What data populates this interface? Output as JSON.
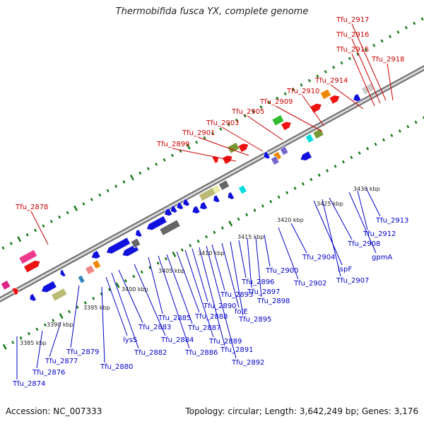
{
  "title": "Thermobifida fusca YX, complete genome",
  "footer": {
    "accession": "Accession: NC_007333",
    "topology": "Topology: circular; Length: 3,642,249 bp; Genes: 3,176"
  },
  "colors": {
    "forward_label": "#cc0000",
    "reverse_label": "#0000cc",
    "backbone": "#9a9a9a",
    "tick": "#117711",
    "ruler_text": "#222222"
  },
  "ruler_labels": [
    "3385 kbp",
    "3390 kbp",
    "3395 kbp",
    "3400 kbp",
    "3405 kbp",
    "3410 kbp",
    "3415 kbp",
    "3420 kbp",
    "3425 kbp",
    "3430 kbp"
  ],
  "forward_labels": [
    "Tfu_2878",
    "Tfu_2899",
    "Tfu_2901",
    "Tfu_2903",
    "Tfu_2905",
    "Tfu_2909",
    "Tfu_2910",
    "Tfu_2914",
    "Tfu_2915",
    "Tfu_2916",
    "Tfu_2917",
    "Tfu_2918"
  ],
  "reverse_labels": [
    "Tfu_2874",
    "Tfu_2876",
    "Tfu_2877",
    "Tfu_2879",
    "Tfu_2880",
    "lysS",
    "Tfu_2882",
    "Tfu_2883",
    "Tfu_2884",
    "Tfu_2885",
    "Tfu_2886",
    "Tfu_2887",
    "Tfu_2888",
    "Tfu_2889",
    "Tfu_2890",
    "Tfu_2891",
    "Tfu_2892",
    "Tfu_2893",
    "folE",
    "Tfu_2895",
    "Tfu_2896",
    "Tfu_2897",
    "Tfu_2898",
    "Tfu_2900",
    "Tfu_2902",
    "Tfu_2904",
    "ispF",
    "Tfu_2907",
    "Tfu_2908",
    "gpmA",
    "Tfu_2912",
    "Tfu_2913"
  ]
}
